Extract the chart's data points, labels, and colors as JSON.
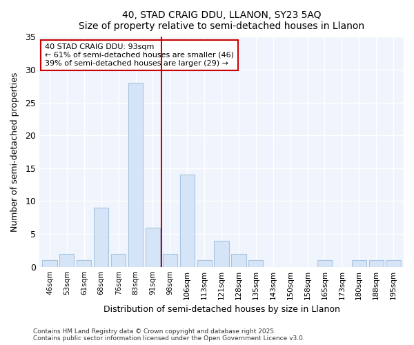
{
  "title1": "40, STAD CRAIG DDU, LLANON, SY23 5AQ",
  "title2": "Size of property relative to semi-detached houses in Llanon",
  "xlabel": "Distribution of semi-detached houses by size in Llanon",
  "ylabel": "Number of semi-detached properties",
  "bar_color": "#d6e4f7",
  "bar_edge_color": "#a8c4e0",
  "vline_color": "#cc0000",
  "background_color": "#ffffff",
  "plot_bg_color": "#f0f4fc",
  "grid_color": "#ffffff",
  "categories": [
    "46sqm",
    "53sqm",
    "61sqm",
    "68sqm",
    "76sqm",
    "83sqm",
    "91sqm",
    "98sqm",
    "106sqm",
    "113sqm",
    "121sqm",
    "128sqm",
    "135sqm",
    "143sqm",
    "150sqm",
    "158sqm",
    "165sqm",
    "173sqm",
    "180sqm",
    "188sqm",
    "195sqm"
  ],
  "values": [
    1,
    2,
    1,
    9,
    2,
    28,
    6,
    2,
    14,
    1,
    4,
    2,
    1,
    0,
    0,
    0,
    1,
    0,
    1,
    1,
    1
  ],
  "ylim": [
    0,
    35
  ],
  "yticks": [
    0,
    5,
    10,
    15,
    20,
    25,
    30,
    35
  ],
  "vline_index": 6.5,
  "annotation_title": "40 STAD CRAIG DDU: 93sqm",
  "annotation_line2": "← 61% of semi-detached houses are smaller (46)",
  "annotation_line3": "39% of semi-detached houses are larger (29) →",
  "annotation_box_color": "#ffffff",
  "annotation_box_edge": "#cc0000",
  "footnote1": "Contains HM Land Registry data © Crown copyright and database right 2025.",
  "footnote2": "Contains public sector information licensed under the Open Government Licence v3.0."
}
